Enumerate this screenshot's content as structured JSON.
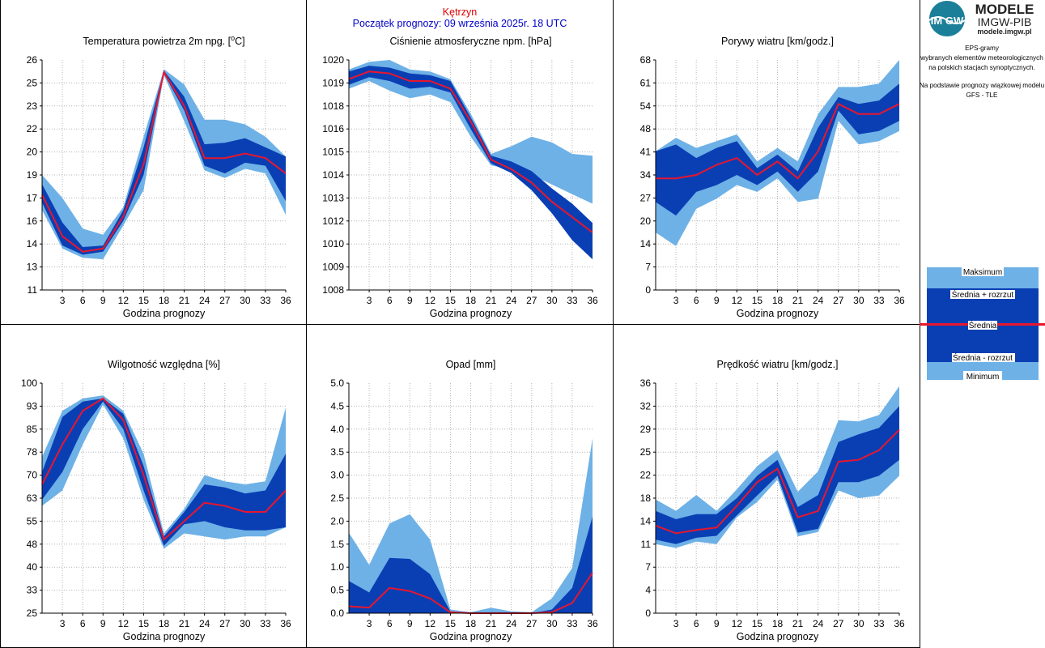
{
  "header": {
    "station": "Kętrzyn",
    "forecast_start": "Początek prognozy: 09 września 2025r. 18 UTC"
  },
  "logo": {
    "badge_text": "IM GW",
    "title": "MODELE",
    "subtitle": "IMGW-PIB",
    "url": "modele.imgw.pl"
  },
  "info": {
    "lines": [
      "EPS-gramy",
      "wybranych elementów meteorologicznych",
      "na polskich stacjach  synoptycznych.",
      "",
      "Na podstawie prognozy wiązkowej modelu",
      "GFS - TLE"
    ]
  },
  "legend": {
    "max": "Maksimum",
    "mean_plus": "Średnia + rozrzut",
    "mean": "Średnia",
    "mean_minus": "Średnia - rozrzut",
    "min": "Minimum"
  },
  "colors": {
    "light_band": "#6eb1e6",
    "dark_band": "#0a3fb4",
    "mean_line": "#e8162e",
    "grid": "#b4b4b4",
    "station_title": "#e00000",
    "start_title": "#0000c8"
  },
  "chart_data": [
    {
      "type": "area",
      "title": "Temperatura powietrza 2m npg. [",
      "title_sup": "o",
      "title_tail": "C]",
      "xlabel": "Godzina prognozy",
      "x": [
        0,
        3,
        6,
        9,
        12,
        15,
        18,
        21,
        24,
        27,
        30,
        33,
        36
      ],
      "x_ticks": [
        3,
        6,
        9,
        12,
        15,
        18,
        21,
        24,
        27,
        30,
        33,
        36
      ],
      "ylim": [
        11,
        26
      ],
      "y_ticks": [
        "11",
        "13",
        "14",
        "16",
        "17",
        "19",
        "20",
        "22",
        "23",
        "25",
        "26"
      ],
      "min": [
        16.2,
        13.7,
        13.1,
        13.0,
        15.2,
        17.5,
        25.0,
        22.0,
        18.8,
        18.3,
        18.9,
        18.6,
        15.9
      ],
      "lower": [
        16.7,
        13.9,
        13.3,
        13.5,
        15.5,
        18.5,
        25.1,
        22.7,
        19.1,
        18.6,
        19.3,
        19.1,
        16.8
      ],
      "mean": [
        17.2,
        14.5,
        13.5,
        13.7,
        15.8,
        19.2,
        25.2,
        23.0,
        19.6,
        19.6,
        19.9,
        19.6,
        18.6
      ],
      "upper": [
        17.9,
        15.4,
        13.8,
        13.9,
        16.2,
        20.3,
        25.3,
        23.6,
        20.5,
        20.6,
        20.9,
        20.3,
        19.7
      ],
      "max": [
        18.5,
        17.0,
        15.0,
        14.6,
        16.4,
        21.0,
        25.4,
        24.4,
        22.1,
        22.1,
        21.8,
        21.0,
        19.7
      ]
    },
    {
      "type": "area",
      "title": "Ciśnienie atmosferyczne npm. [hPa]",
      "xlabel": "Godzina prognozy",
      "x": [
        0,
        3,
        6,
        9,
        12,
        15,
        18,
        21,
        24,
        27,
        30,
        33,
        36
      ],
      "x_ticks": [
        3,
        6,
        9,
        12,
        15,
        18,
        21,
        24,
        27,
        30,
        33,
        36
      ],
      "ylim": [
        1008,
        1020
      ],
      "y_ticks": [
        "1008",
        "1009",
        "1010",
        "1012",
        "1013",
        "1014",
        "1015",
        "1016",
        "1018",
        "1019",
        "1020"
      ],
      "min": [
        1018.5,
        1018.9,
        1018.4,
        1018.0,
        1018.2,
        1017.8,
        1016.0,
        1014.5,
        1014.3,
        1014.0,
        1013.5,
        1013.0,
        1012.5
      ],
      "lower": [
        1018.7,
        1019.1,
        1018.9,
        1018.5,
        1018.6,
        1018.3,
        1016.4,
        1014.6,
        1014.1,
        1013.2,
        1012.0,
        1010.6,
        1009.6
      ],
      "mean": [
        1019.0,
        1019.4,
        1019.3,
        1018.9,
        1018.9,
        1018.5,
        1016.8,
        1014.8,
        1014.3,
        1013.6,
        1012.6,
        1011.8,
        1011.0
      ],
      "upper": [
        1019.4,
        1019.7,
        1019.6,
        1019.3,
        1019.2,
        1018.9,
        1017.0,
        1015.0,
        1014.7,
        1014.2,
        1013.3,
        1012.5,
        1011.5
      ],
      "max": [
        1019.5,
        1019.9,
        1020.0,
        1019.5,
        1019.4,
        1019.0,
        1017.2,
        1015.1,
        1015.5,
        1016.0,
        1015.7,
        1015.1,
        1015.0
      ]
    },
    {
      "type": "area",
      "title": "Porywy wiatru [km/godz.]",
      "xlabel": "Godzina prognozy",
      "x": [
        0,
        3,
        6,
        9,
        12,
        15,
        18,
        21,
        24,
        27,
        30,
        33,
        36
      ],
      "x_ticks": [
        3,
        6,
        9,
        12,
        15,
        18,
        21,
        24,
        27,
        30,
        33,
        36
      ],
      "ylim": [
        0,
        68
      ],
      "y_ticks": [
        "0",
        "7",
        "14",
        "20",
        "27",
        "34",
        "41",
        "48",
        "54",
        "61",
        "68"
      ],
      "min": [
        17,
        13,
        24,
        27,
        31,
        29,
        33,
        26,
        27,
        50,
        43,
        44,
        47
      ],
      "lower": [
        26,
        22,
        29,
        31,
        34,
        31,
        35,
        29,
        35,
        53,
        46,
        47,
        50
      ],
      "mean": [
        33,
        33,
        34,
        37,
        39,
        34,
        38,
        33,
        41,
        55,
        52,
        52,
        55
      ],
      "upper": [
        41,
        43,
        39,
        42,
        44,
        36,
        40,
        35,
        48,
        57,
        55,
        56,
        61
      ],
      "max": [
        41,
        45,
        42,
        44,
        46,
        38,
        42,
        38,
        52,
        60,
        60,
        61,
        68
      ]
    },
    {
      "type": "area",
      "title": "Wilgotność względna [%]",
      "xlabel": "Godzina prognozy",
      "x": [
        0,
        3,
        6,
        9,
        12,
        15,
        18,
        21,
        24,
        27,
        30,
        33,
        36
      ],
      "x_ticks": [
        3,
        6,
        9,
        12,
        15,
        18,
        21,
        24,
        27,
        30,
        33,
        36
      ],
      "ylim": [
        25,
        100
      ],
      "y_ticks": [
        "25",
        "33",
        "40",
        "48",
        "55",
        "63",
        "70",
        "78",
        "85",
        "93",
        "100"
      ],
      "min": [
        60,
        65,
        80,
        93,
        82,
        62,
        46,
        51,
        50,
        49,
        50,
        50,
        53
      ],
      "lower": [
        62,
        71,
        85,
        94,
        85,
        65,
        47,
        54,
        55,
        53,
        52,
        52,
        53
      ],
      "mean": [
        67,
        80,
        91,
        95,
        88,
        70,
        49,
        55,
        61,
        60,
        58,
        58,
        65
      ],
      "upper": [
        71,
        89,
        94,
        95,
        90,
        73,
        50,
        58,
        67,
        66,
        64,
        65,
        77
      ],
      "max": [
        76,
        91,
        95,
        96,
        91,
        77,
        51,
        59,
        70,
        68,
        67,
        68,
        92
      ]
    },
    {
      "type": "area",
      "title": "Opad [mm]",
      "xlabel": "Godzina prognozy",
      "x": [
        0,
        3,
        6,
        9,
        12,
        15,
        18,
        21,
        24,
        27,
        30,
        33,
        36
      ],
      "x_ticks": [
        3,
        6,
        9,
        12,
        15,
        18,
        21,
        24,
        27,
        30,
        33,
        36
      ],
      "ylim": [
        0,
        5
      ],
      "y_ticks": [
        "0.0",
        "0.5",
        "1.0",
        "1.5",
        "2.0",
        "2.5",
        "3.0",
        "3.5",
        "4.0",
        "4.5",
        "5.0"
      ],
      "min": [
        0,
        0,
        0,
        0,
        0,
        0,
        0,
        0,
        0,
        0,
        0,
        0,
        0
      ],
      "lower": [
        0,
        0,
        0,
        0,
        0,
        0,
        0,
        0,
        0,
        0,
        0,
        0,
        0
      ],
      "mean": [
        0.15,
        0.12,
        0.55,
        0.48,
        0.32,
        0.02,
        0,
        0,
        0,
        0,
        0.02,
        0.22,
        0.88
      ],
      "upper": [
        0.7,
        0.45,
        1.2,
        1.18,
        0.85,
        0.04,
        0,
        0.02,
        0,
        0,
        0.08,
        0.55,
        2.1
      ],
      "max": [
        1.75,
        1.05,
        1.95,
        2.15,
        1.6,
        0.08,
        0.02,
        0.12,
        0.04,
        0.02,
        0.32,
        0.98,
        3.8
      ]
    },
    {
      "type": "area",
      "title": "Prędkość wiatru [km/godz.]",
      "xlabel": "Godzina prognozy",
      "x": [
        0,
        3,
        6,
        9,
        12,
        15,
        18,
        21,
        24,
        27,
        30,
        33,
        36
      ],
      "x_ticks": [
        3,
        6,
        9,
        12,
        15,
        18,
        21,
        24,
        27,
        30,
        33,
        36
      ],
      "ylim": [
        0,
        36
      ],
      "y_ticks": [
        "0",
        "4",
        "7",
        "11",
        "14",
        "18",
        "22",
        "25",
        "29",
        "32",
        "36"
      ],
      "min": [
        10.8,
        10.2,
        11.2,
        10.8,
        15.0,
        17.4,
        20.9,
        12.0,
        12.7,
        19.2,
        18.0,
        18.4,
        21.5
      ],
      "lower": [
        11.5,
        10.8,
        11.8,
        12.1,
        15.3,
        18.4,
        21.5,
        12.6,
        13.2,
        20.5,
        20.5,
        21.5,
        24.0
      ],
      "mean": [
        13.7,
        12.5,
        13.0,
        13.4,
        16.8,
        20.5,
        22.6,
        15.0,
        16.0,
        23.7,
        24.0,
        25.5,
        28.7
      ],
      "upper": [
        16.0,
        14.7,
        15.5,
        15.5,
        18.0,
        21.5,
        24.0,
        16.6,
        18.5,
        26.8,
        28.0,
        29.0,
        32.4
      ],
      "max": [
        17.8,
        16.0,
        18.5,
        16.0,
        19.4,
        23.0,
        25.5,
        19.0,
        22.2,
        30.2,
        30.0,
        31.0,
        35.5
      ]
    }
  ]
}
